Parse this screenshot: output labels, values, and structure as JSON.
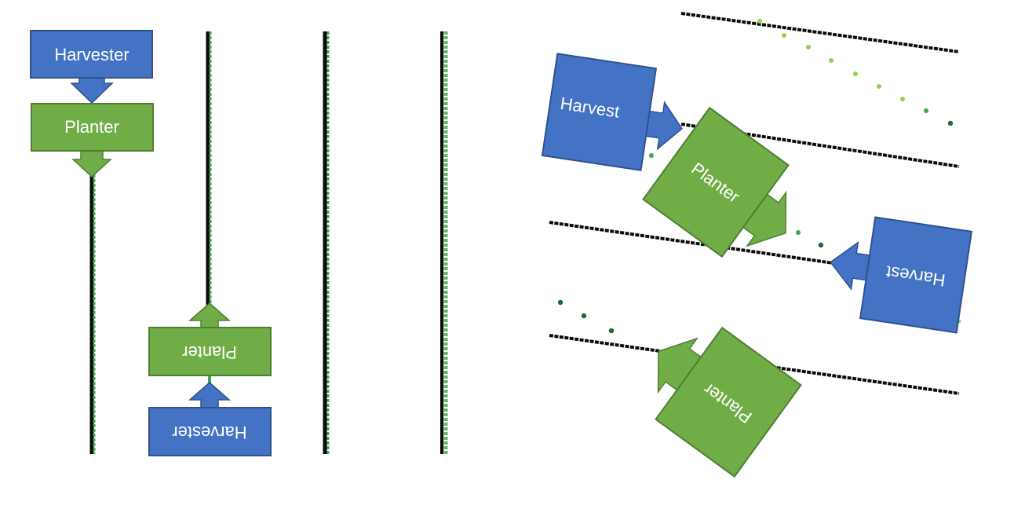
{
  "colors": {
    "harvester_blue": "#4472C4",
    "planter_green": "#70AD47",
    "box_border_blue": "#2F528F",
    "box_border_green": "#507E32",
    "seed_row_black": "#0a0a0a",
    "seed_row_green": "#3DA84F",
    "seed_light": "#92D050",
    "seed_dark": "#1E6B30"
  },
  "left_panel": {
    "harvester_top": "Harvester",
    "planter_top": "Planter",
    "planter_bottom": "Planter",
    "harvester_bottom": "Harvester"
  },
  "right_panel": {
    "harvest_top": "Harvest",
    "planter_top": "Planter",
    "harvest_right": "Harvest",
    "planter_bottom": "Planter"
  }
}
